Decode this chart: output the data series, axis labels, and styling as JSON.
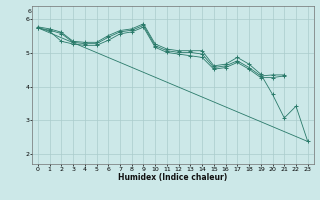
{
  "title": "",
  "xlabel": "Humidex (Indice chaleur)",
  "background_color": "#cce8e8",
  "grid_color": "#aacccc",
  "line_color": "#2a7a6a",
  "xlim": [
    -0.5,
    23.5
  ],
  "ylim": [
    1.7,
    6.4
  ],
  "xticks": [
    0,
    1,
    2,
    3,
    4,
    5,
    6,
    7,
    8,
    9,
    10,
    11,
    12,
    13,
    14,
    15,
    16,
    17,
    18,
    19,
    20,
    21,
    22,
    23
  ],
  "yticks": [
    2,
    3,
    4,
    5,
    6
  ],
  "line1_x": [
    0,
    1,
    2,
    3,
    4,
    5,
    6,
    7,
    8,
    9,
    10,
    11,
    12,
    13,
    14,
    15,
    16,
    17,
    18,
    19,
    20,
    21,
    22,
    23
  ],
  "line1_y": [
    5.78,
    5.72,
    5.62,
    5.35,
    5.32,
    5.32,
    5.52,
    5.67,
    5.72,
    5.87,
    5.27,
    5.12,
    5.07,
    5.07,
    5.07,
    4.62,
    4.67,
    4.87,
    4.67,
    4.37,
    3.77,
    3.07,
    3.42,
    2.37
  ],
  "line2_x": [
    0,
    1,
    2,
    3,
    4,
    5,
    6,
    7,
    8,
    9,
    10,
    11,
    12,
    13,
    14,
    15,
    16,
    17,
    18,
    19,
    20,
    21
  ],
  "line2_y": [
    5.75,
    5.68,
    5.58,
    5.32,
    5.28,
    5.28,
    5.47,
    5.63,
    5.68,
    5.82,
    5.22,
    5.07,
    5.02,
    5.02,
    4.97,
    4.57,
    4.62,
    4.77,
    4.57,
    4.32,
    4.35,
    4.35
  ],
  "line3_x": [
    0,
    23
  ],
  "line3_y": [
    5.75,
    2.37
  ],
  "line4_x": [
    0,
    1,
    2,
    3,
    4,
    5,
    6,
    7,
    8,
    9,
    10,
    11,
    12,
    13,
    14,
    15,
    16,
    17,
    18,
    19,
    20,
    21
  ],
  "line4_y": [
    5.75,
    5.65,
    5.35,
    5.27,
    5.23,
    5.23,
    5.38,
    5.57,
    5.63,
    5.77,
    5.17,
    5.02,
    4.97,
    4.92,
    4.87,
    4.52,
    4.57,
    4.72,
    4.52,
    4.27,
    4.27,
    4.32
  ]
}
